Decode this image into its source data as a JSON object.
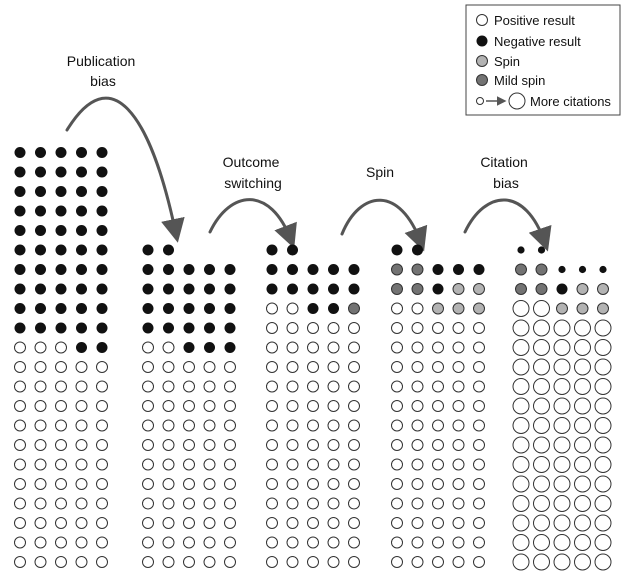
{
  "legend": {
    "items": [
      {
        "kind": "positive",
        "label": "Positive result"
      },
      {
        "kind": "negative",
        "label": "Negative result"
      },
      {
        "kind": "spin",
        "label": "Spin"
      },
      {
        "kind": "mild_spin",
        "label": "Mild spin"
      },
      {
        "kind": "citations",
        "label": "More citations"
      }
    ]
  },
  "stages": [
    {
      "lines": [
        "Publication",
        "bias"
      ]
    },
    {
      "lines": [
        "Outcome",
        "switching"
      ]
    },
    {
      "lines": [
        "Spin"
      ]
    },
    {
      "lines": [
        "Citation",
        "bias"
      ]
    }
  ],
  "colors": {
    "negative": "#111111",
    "spin": "#b3b3b3",
    "mild_spin": "#737373",
    "positive_fill": "#ffffff",
    "stroke": "#333333",
    "arrow": "#555555"
  },
  "grids": [
    {
      "rows": [
        "NNNNN",
        "NNNNN",
        "NNNNN",
        "NNNNN",
        "NNNNN",
        "NNNNN",
        "NNNNN",
        "NNNNN",
        "NNNNN",
        "NNNNN",
        "PPPNN",
        "PPPPP",
        "PPPPP",
        "PPPPP",
        "PPPPP",
        "PPPPP",
        "PPPPP",
        "PPPPP",
        "PPPPP",
        "PPPPP",
        "PPPPP",
        "PPPPP"
      ]
    },
    {
      "rows": [
        "NN...",
        "NNNNN",
        "NNNNN",
        "NNNNN",
        "NNNNN",
        "PPNNN",
        "PPPPP",
        "PPPPP",
        "PPPPP",
        "PPPPP",
        "PPPPP",
        "PPPPP",
        "PPPPP",
        "PPPPP",
        "PPPPP",
        "PPPPP",
        "PPPPP"
      ]
    },
    {
      "rows": [
        "NN...",
        "NNNNN",
        "NNNNN",
        "PPNNM",
        "PPPPP",
        "PPPPP",
        "PPPPP",
        "PPPPP",
        "PPPPP",
        "PPPPP",
        "PPPPP",
        "PPPPP",
        "PPPPP",
        "PPPPP",
        "PPPPP",
        "PPPPP",
        "PPPPP"
      ]
    },
    {
      "rows": [
        "NN...",
        "MMNNN",
        "MMNSS",
        "PPSSS",
        "PPPPP",
        "PPPPP",
        "PPPPP",
        "PPPPP",
        "PPPPP",
        "PPPPP",
        "PPPPP",
        "PPPPP",
        "PPPPP",
        "PPPPP",
        "PPPPP",
        "PPPPP",
        "PPPPP"
      ]
    },
    {
      "rows": [
        "nn...",
        "MMnnn",
        "MMNSS",
        "PPSSS",
        "PPPPP",
        "PPPPP",
        "PPPPP",
        "PPPPP",
        "PPPPP",
        "PPPPP",
        "PPPPP",
        "PPPPP",
        "PPPPP",
        "PPPPP",
        "PPPPP",
        "PPPPP",
        "PPPPP"
      ],
      "enlarged_positive": true
    }
  ]
}
